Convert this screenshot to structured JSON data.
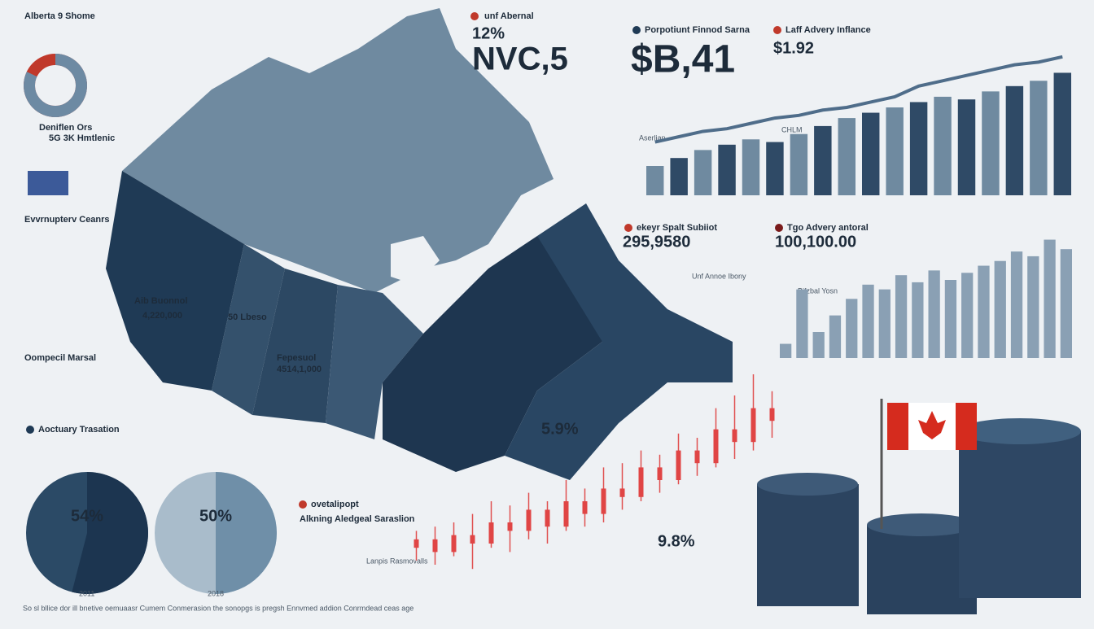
{
  "header": {
    "title": "Alberta 9 Shome"
  },
  "donut": {
    "value": 82
  },
  "left_notes": {
    "flag_label": "Deniflen Ors",
    "flag_sub": "5G 3K Hmtlenic",
    "ranking": "Evvrnupterv Ceanrs",
    "capital": "Oompecil Marsal"
  },
  "callout_a": {
    "label": "unf Abernal",
    "pct": "12%",
    "big": "NVC,5"
  },
  "callout_b": {
    "label": "Porpotiunt Finnod Sarna",
    "big": "$B,41"
  },
  "callout_c": {
    "label": "Laff Advery Inflance",
    "big": "$1.92"
  },
  "map_labels": {
    "west": "4,220,000",
    "prairie": "4514,1,000",
    "east": "5.9%",
    "north": "Aib Buonnol",
    "mid": "50 Lbeso",
    "center": "Fepesuol"
  },
  "top_chart": {
    "values": [
      22,
      28,
      34,
      38,
      42,
      40,
      46,
      52,
      58,
      62,
      66,
      70,
      74,
      72,
      78,
      82,
      86,
      92
    ],
    "trend": [
      40,
      44,
      48,
      50,
      54,
      58,
      60,
      64,
      66,
      70,
      74,
      82,
      86,
      90,
      94,
      98,
      100,
      104
    ],
    "ylim": [
      0,
      110
    ],
    "labels": {
      "a": "CHLM",
      "b": "Aserlian"
    }
  },
  "mid_left": {
    "title": "ekeyr Spalt Subiiot",
    "value": "295,9580",
    "sub": "Unf Annoe Ibony"
  },
  "mid_chart": {
    "title": "Tgo Advery antoral",
    "value": "100,100.00",
    "tag": "Bifzbal Yosn",
    "values": [
      12,
      58,
      22,
      36,
      50,
      62,
      58,
      70,
      64,
      74,
      66,
      72,
      78,
      82,
      90,
      86,
      100,
      92
    ],
    "ylim": [
      0,
      110
    ]
  },
  "actuary": {
    "title": "Aoctuary Trasation"
  },
  "pies": [
    {
      "value": 54,
      "label": "54%",
      "year": "2011"
    },
    {
      "value": 50,
      "label": "50%",
      "year": "2018"
    }
  ],
  "bottom": {
    "title": "ovetalipopt",
    "subtitle": "Alkning Aledgeal Saraslion",
    "value": "9.8%",
    "caption": "Lanpis Rasmovalls"
  },
  "candles": {
    "ylim": [
      0,
      100
    ],
    "items": [
      {
        "o": 18,
        "c": 22,
        "h": 26,
        "l": 12
      },
      {
        "o": 22,
        "c": 16,
        "h": 28,
        "l": 10
      },
      {
        "o": 16,
        "c": 24,
        "h": 30,
        "l": 14
      },
      {
        "o": 24,
        "c": 20,
        "h": 34,
        "l": 8
      },
      {
        "o": 20,
        "c": 30,
        "h": 40,
        "l": 18
      },
      {
        "o": 30,
        "c": 26,
        "h": 38,
        "l": 16
      },
      {
        "o": 26,
        "c": 36,
        "h": 44,
        "l": 22
      },
      {
        "o": 36,
        "c": 28,
        "h": 40,
        "l": 20
      },
      {
        "o": 28,
        "c": 40,
        "h": 50,
        "l": 26
      },
      {
        "o": 40,
        "c": 34,
        "h": 46,
        "l": 28
      },
      {
        "o": 34,
        "c": 46,
        "h": 56,
        "l": 30
      },
      {
        "o": 46,
        "c": 42,
        "h": 58,
        "l": 36
      },
      {
        "o": 42,
        "c": 56,
        "h": 64,
        "l": 40
      },
      {
        "o": 56,
        "c": 50,
        "h": 62,
        "l": 44
      },
      {
        "o": 50,
        "c": 64,
        "h": 72,
        "l": 48
      },
      {
        "o": 64,
        "c": 58,
        "h": 70,
        "l": 52
      },
      {
        "o": 58,
        "c": 74,
        "h": 84,
        "l": 56
      },
      {
        "o": 74,
        "c": 68,
        "h": 90,
        "l": 60
      },
      {
        "o": 68,
        "c": 84,
        "h": 100,
        "l": 64
      },
      {
        "o": 84,
        "c": 78,
        "h": 92,
        "l": 70
      }
    ]
  },
  "footer": {
    "text": "So sl bllice dor ill bnetive oemuaasr Cumem Conmerasion the sonopgs is pregsh Ennvmed addion Conrmdead ceas age"
  }
}
